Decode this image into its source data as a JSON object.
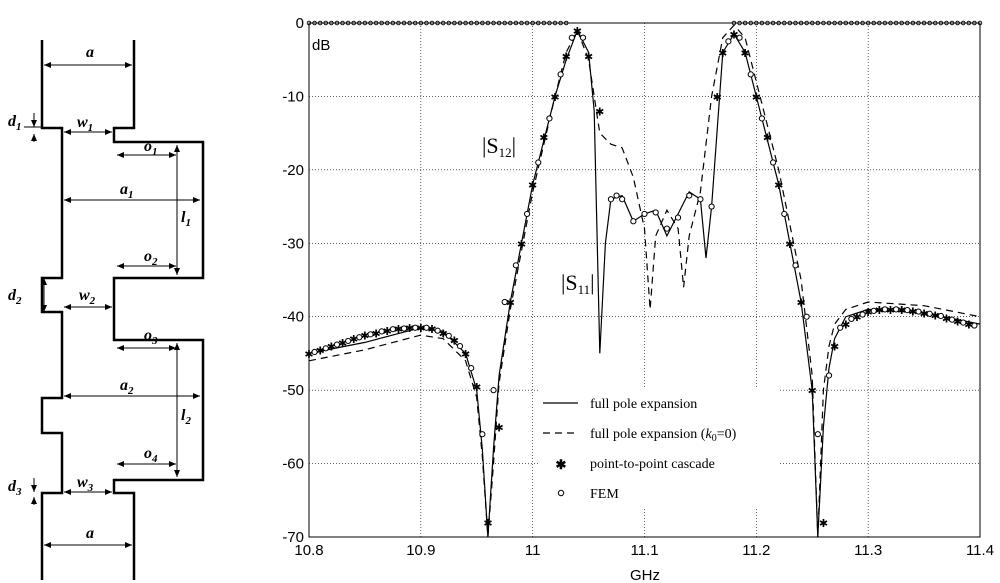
{
  "diagram": {
    "labels": {
      "a_top": "a",
      "d1": "d",
      "d1_sub": "1",
      "w1": "w",
      "w1_sub": "1",
      "o1": "o",
      "o1_sub": "1",
      "a1": "a",
      "a1_sub": "1",
      "l1": "l",
      "l1_sub": "1",
      "o2": "o",
      "o2_sub": "2",
      "d2": "d",
      "d2_sub": "2",
      "w2": "w",
      "w2_sub": "2",
      "o3": "o",
      "o3_sub": "3",
      "a2": "a",
      "a2_sub": "2",
      "l2": "l",
      "l2_sub": "2",
      "o4": "o",
      "o4_sub": "4",
      "d3": "d",
      "d3_sub": "3",
      "w3": "w",
      "w3_sub": "3",
      "a_bottom": "a"
    }
  },
  "chart_data": {
    "type": "line",
    "xlabel": "GHz",
    "ylabel": "dB",
    "xlim": [
      10.8,
      11.4
    ],
    "ylim": [
      -70,
      0
    ],
    "xticks": [
      10.8,
      10.9,
      11,
      11.1,
      11.2,
      11.3,
      11.4
    ],
    "xtick_labels": [
      "10.8",
      "10.9",
      "11",
      "11.1",
      "11.2",
      "11.3",
      "11.4"
    ],
    "yticks": [
      0,
      -10,
      -20,
      -30,
      -40,
      -50,
      -60,
      -70
    ],
    "ytick_labels": [
      "0",
      "-10",
      "-20",
      "-30",
      "-40",
      "-50",
      "-60",
      "-70"
    ],
    "grid": true,
    "legend_position": "bottom-center",
    "annotations": {
      "s12": {
        "text": "|S",
        "sub": "12",
        "close": "|"
      },
      "s11": {
        "text": "|S",
        "sub": "11",
        "close": "|"
      }
    },
    "legend": {
      "solid": "full pole expansion",
      "dashed_prefix": "full pole expansion (",
      "dashed_k": "k",
      "dashed_sub": "0",
      "dashed_suffix": "=0)",
      "star": "point-to-point cascade",
      "circle": "FEM"
    },
    "series": [
      {
        "style": "solid",
        "x": [
          10.8,
          10.85,
          10.9,
          10.92,
          10.94,
          10.95,
          10.955,
          10.96,
          10.965,
          10.97,
          10.98,
          11.0,
          11.02,
          11.03,
          11.04,
          11.05,
          11.055,
          11.06,
          11.065,
          11.07,
          11.08,
          11.09,
          11.1,
          11.11,
          11.12,
          11.13,
          11.14,
          11.15,
          11.155,
          11.16,
          11.17,
          11.18,
          11.19,
          11.2,
          11.22,
          11.24,
          11.25,
          11.255,
          11.26,
          11.265,
          11.27,
          11.28,
          11.3,
          11.35,
          11.4
        ],
        "values": [
          -45,
          -43.5,
          -41.5,
          -42,
          -45,
          -50,
          -58,
          -70,
          -58,
          -48,
          -38,
          -22,
          -10,
          -5,
          -1,
          -4,
          -12,
          -45,
          -30,
          -24,
          -23.5,
          -27,
          -26,
          -25.5,
          -29,
          -26,
          -23,
          -24,
          -32,
          -25,
          -4,
          -1.5,
          -4,
          -10,
          -22,
          -38,
          -50,
          -70,
          -55,
          -47,
          -43,
          -40,
          -39,
          -39.5,
          -41
        ]
      },
      {
        "style": "dashed",
        "x": [
          10.8,
          10.85,
          10.9,
          10.92,
          10.94,
          10.95,
          10.955,
          10.96,
          10.965,
          10.97,
          10.98,
          11.0,
          11.02,
          11.03,
          11.04,
          11.05,
          11.06,
          11.07,
          11.08,
          11.09,
          11.1,
          11.105,
          11.11,
          11.12,
          11.13,
          11.135,
          11.14,
          11.15,
          11.16,
          11.17,
          11.18,
          11.19,
          11.2,
          11.22,
          11.24,
          11.25,
          11.255,
          11.26,
          11.265,
          11.27,
          11.28,
          11.3,
          11.35,
          11.4
        ],
        "values": [
          -46,
          -44.5,
          -42.5,
          -43,
          -46,
          -51,
          -59,
          -70,
          -60,
          -49,
          -39,
          -23,
          -10,
          -4,
          -1,
          -5,
          -15,
          -16.5,
          -17,
          -21,
          -28,
          -39,
          -29,
          -25.5,
          -28,
          -36,
          -29,
          -23,
          -10,
          -2,
          -0.3,
          -2,
          -8,
          -20,
          -35,
          -48,
          -70,
          -50,
          -44,
          -41,
          -39,
          -38,
          -38.5,
          -40
        ]
      },
      {
        "style": "star",
        "x": [
          10.8,
          10.81,
          10.82,
          10.83,
          10.84,
          10.85,
          10.86,
          10.87,
          10.88,
          10.89,
          10.9,
          10.91,
          10.92,
          10.93,
          10.94,
          10.95,
          10.96,
          10.97,
          10.98,
          10.99,
          11.0,
          11.01,
          11.02,
          11.03,
          11.04,
          11.05,
          11.06,
          11.165,
          11.17,
          11.18,
          11.19,
          11.2,
          11.21,
          11.22,
          11.23,
          11.24,
          11.25,
          11.26,
          11.27,
          11.28,
          11.29,
          11.3,
          11.31,
          11.32,
          11.33,
          11.34,
          11.35,
          11.36,
          11.37,
          11.38,
          11.39
        ],
        "values": [
          -45,
          -44.5,
          -44,
          -43.5,
          -43,
          -42.5,
          -42.2,
          -41.9,
          -41.6,
          -41.5,
          -41.5,
          -41.6,
          -42.2,
          -43.2,
          -45,
          -49.5,
          -68,
          -55,
          -38,
          -30,
          -22,
          -15.5,
          -10,
          -4.5,
          -1,
          -4.5,
          -12,
          -10,
          -4,
          -1.5,
          -4,
          -10,
          -15.5,
          -22,
          -30,
          -38,
          -50,
          -68,
          -44,
          -41,
          -40,
          -39.3,
          -39,
          -39,
          -39,
          -39.2,
          -39.5,
          -39.8,
          -40.2,
          -40.6,
          -41
        ]
      },
      {
        "style": "circle",
        "x": [
          10.805,
          10.815,
          10.825,
          10.835,
          10.845,
          10.855,
          10.865,
          10.875,
          10.885,
          10.895,
          10.905,
          10.915,
          10.925,
          10.935,
          10.945,
          10.955,
          10.965,
          10.975,
          10.985,
          10.995,
          11.005,
          11.015,
          11.025,
          11.035,
          11.045,
          11.07,
          11.075,
          11.08,
          11.09,
          11.1,
          11.11,
          11.12,
          11.13,
          11.14,
          11.15,
          11.16,
          11.175,
          11.185,
          11.195,
          11.205,
          11.215,
          11.225,
          11.235,
          11.245,
          11.255,
          11.265,
          11.275,
          11.285,
          11.295,
          11.305,
          11.315,
          11.325,
          11.335,
          11.345,
          11.355,
          11.365,
          11.375,
          11.385,
          11.395
        ],
        "values": [
          -44.8,
          -44.3,
          -43.8,
          -43.3,
          -42.8,
          -42.4,
          -42,
          -41.7,
          -41.6,
          -41.5,
          -41.5,
          -41.9,
          -42.6,
          -44,
          -47,
          -56,
          -50,
          -38,
          -33,
          -26,
          -19,
          -13,
          -7,
          -2,
          -2,
          -24,
          -23.5,
          -24,
          -27,
          -26,
          -25.8,
          -28,
          -26.5,
          -23.5,
          -24,
          -25,
          -2.5,
          -2,
          -7,
          -13,
          -19,
          -26,
          -33,
          -40,
          -56,
          -48,
          -41.5,
          -40.3,
          -39.7,
          -39.2,
          -39,
          -39,
          -39.1,
          -39.3,
          -39.6,
          -39.9,
          -40.4,
          -40.8,
          -41.2
        ]
      }
    ]
  }
}
